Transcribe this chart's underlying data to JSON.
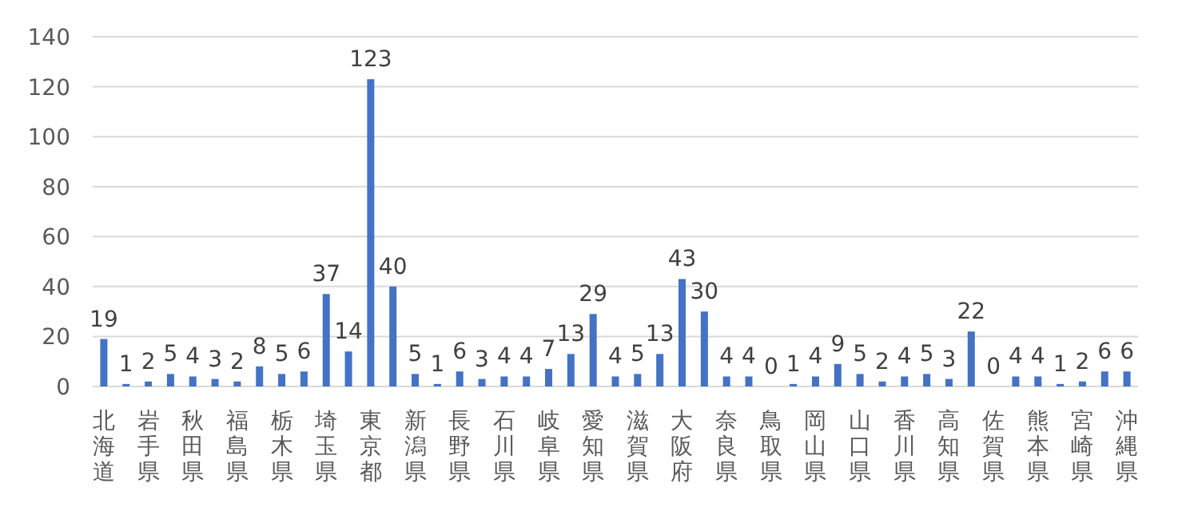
{
  "chart_data": {
    "type": "bar",
    "categories": [
      "北海道",
      null,
      "岩手県",
      null,
      "秋田県",
      null,
      "福島県",
      null,
      "栃木県",
      null,
      "埼玉県",
      null,
      "東京都",
      null,
      "新潟県",
      null,
      "長野県",
      null,
      "石川県",
      null,
      "岐阜県",
      null,
      "愛知県",
      null,
      "滋賀県",
      null,
      "大阪府",
      null,
      "奈良県",
      null,
      "鳥取県",
      null,
      "岡山県",
      null,
      "山口県",
      null,
      "香川県",
      null,
      "高知県",
      null,
      "佐賀県",
      null,
      "熊本県",
      null,
      "宮崎県",
      null,
      "沖縄県"
    ],
    "values": [
      19,
      1,
      2,
      5,
      4,
      3,
      2,
      8,
      5,
      6,
      37,
      14,
      123,
      40,
      5,
      1,
      6,
      3,
      4,
      4,
      7,
      13,
      29,
      4,
      5,
      13,
      43,
      30,
      4,
      4,
      0,
      1,
      4,
      9,
      5,
      2,
      4,
      5,
      3,
      22,
      0,
      4,
      4,
      1,
      2,
      6,
      6
    ],
    "color": "#4472c4",
    "ylim": [
      0,
      140
    ],
    "yticks": [
      0,
      20,
      40,
      60,
      80,
      100,
      120,
      140
    ],
    "grid": "y",
    "data_labels": true
  }
}
